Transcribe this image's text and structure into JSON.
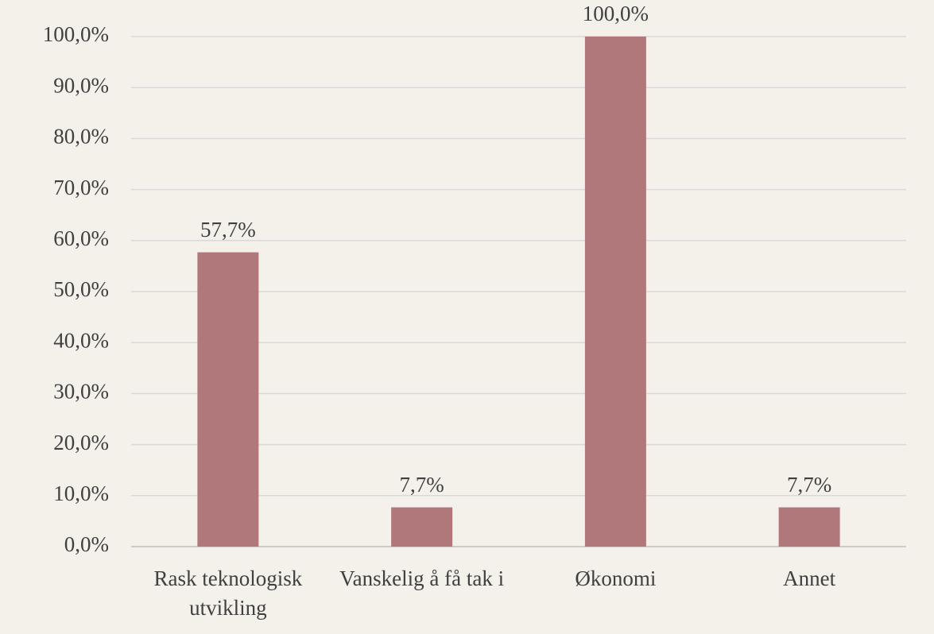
{
  "chart_data": {
    "type": "bar",
    "categories": [
      "Rask teknologisk utvikling",
      "Vanskelig å få tak i",
      "Økonomi",
      "Annet"
    ],
    "values": [
      57.7,
      7.7,
      100,
      7.7
    ],
    "value_labels": [
      "57,7%",
      "7,7%",
      "100,0%",
      "7,7%"
    ],
    "color": "#b0787b",
    "ylim": [
      0,
      100
    ],
    "yticks": [
      {
        "value": 0,
        "label": "0,0%"
      },
      {
        "value": 10,
        "label": "10,0%"
      },
      {
        "value": 20,
        "label": "20,0%"
      },
      {
        "value": 30,
        "label": "30,0%"
      },
      {
        "value": 40,
        "label": "40,0%"
      },
      {
        "value": 50,
        "label": "50,0%"
      },
      {
        "value": 60,
        "label": "60,0%"
      },
      {
        "value": 70,
        "label": "70,0%"
      },
      {
        "value": 80,
        "label": "80,0%"
      },
      {
        "value": 90,
        "label": "90,0%"
      },
      {
        "value": 100,
        "label": "100,0%"
      }
    ],
    "grid": true
  }
}
